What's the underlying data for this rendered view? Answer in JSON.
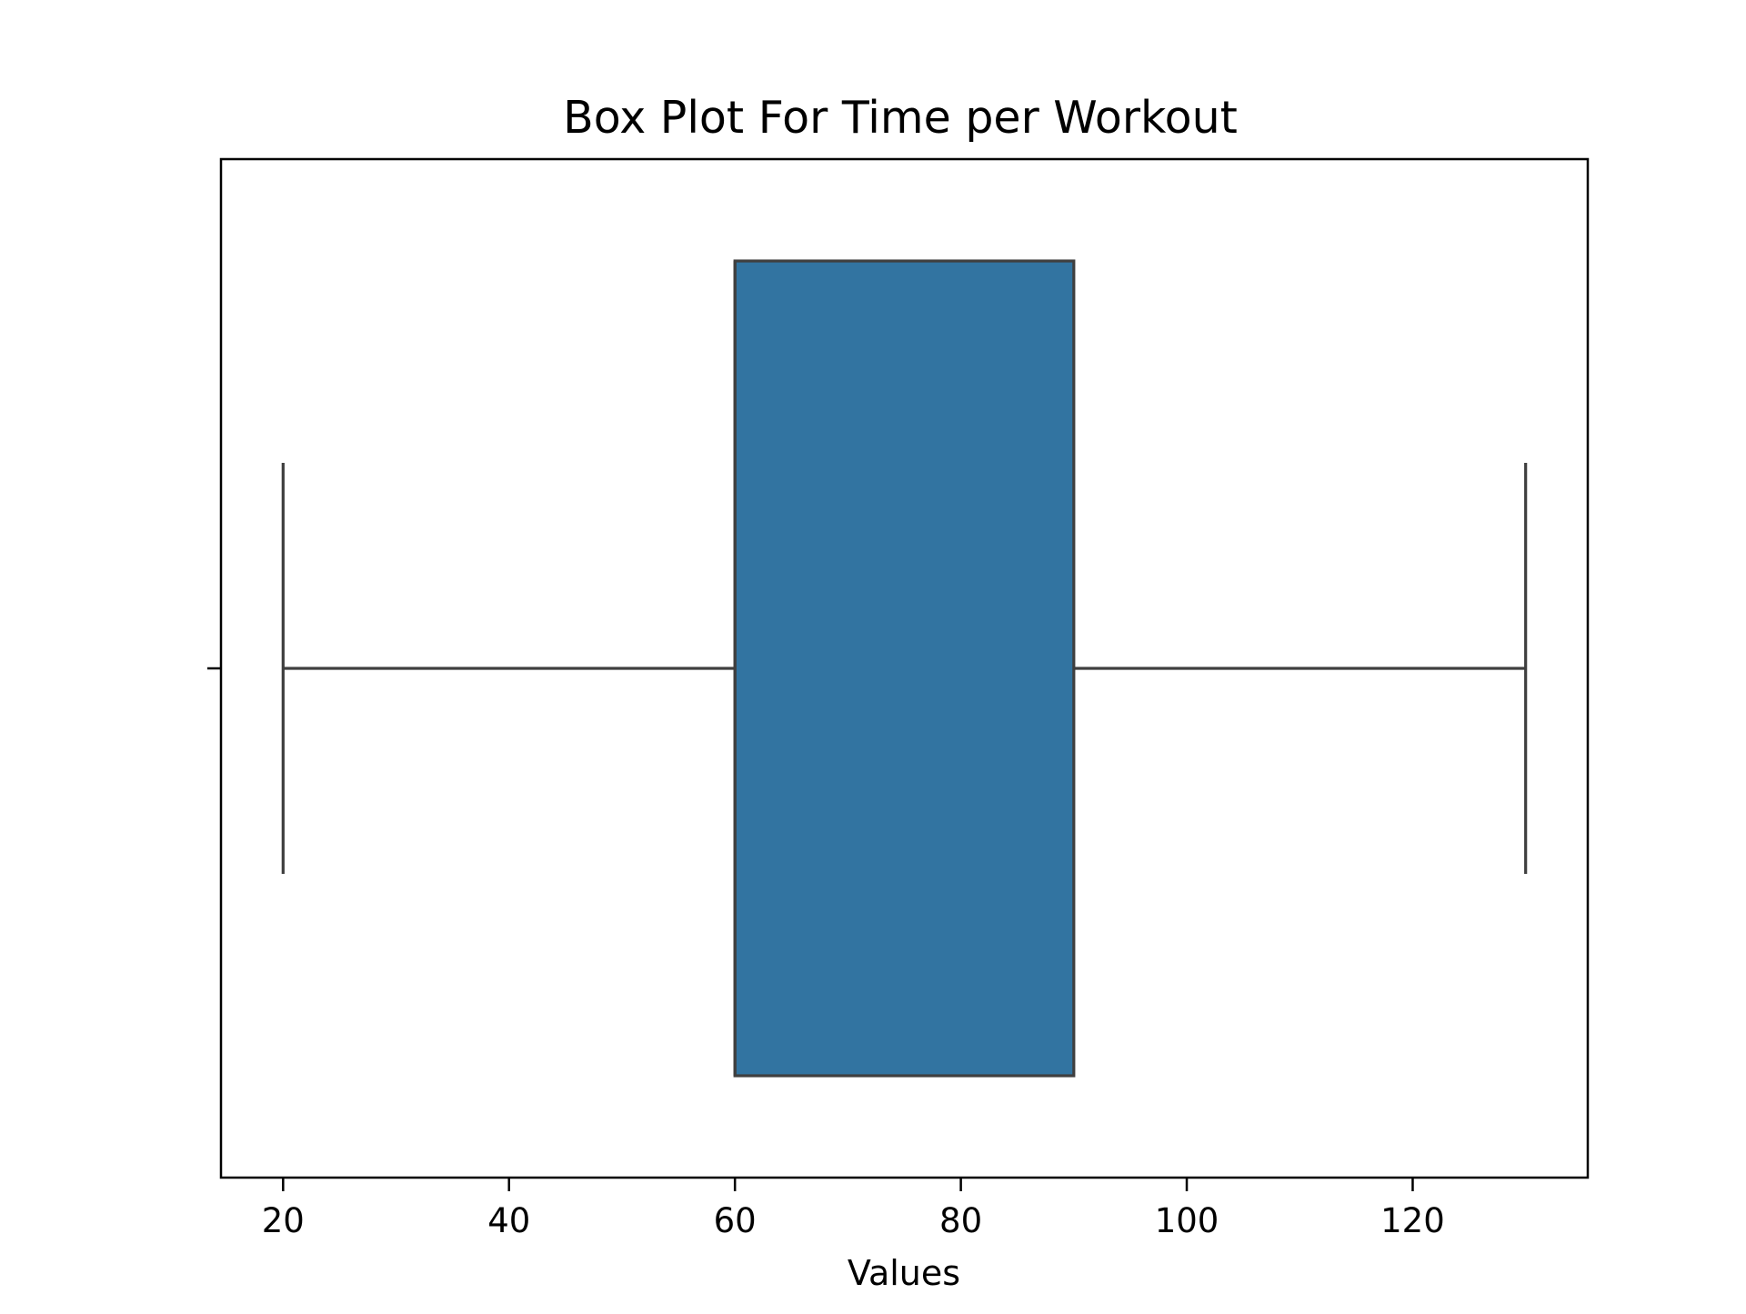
{
  "chart_data": {
    "type": "box",
    "title": "Box Plot For Time per Workout",
    "xlabel": "Values",
    "ylabel": "",
    "orientation": "horizontal",
    "xlim": [
      14.5,
      135.5
    ],
    "xticks": [
      20,
      40,
      60,
      80,
      100,
      120
    ],
    "grid": false,
    "box": {
      "whisker_low": 20,
      "q1": 60,
      "median": 60,
      "q3": 90,
      "whisker_high": 130,
      "color": "#3274a1",
      "edge_color": "#3f3f3f"
    }
  }
}
